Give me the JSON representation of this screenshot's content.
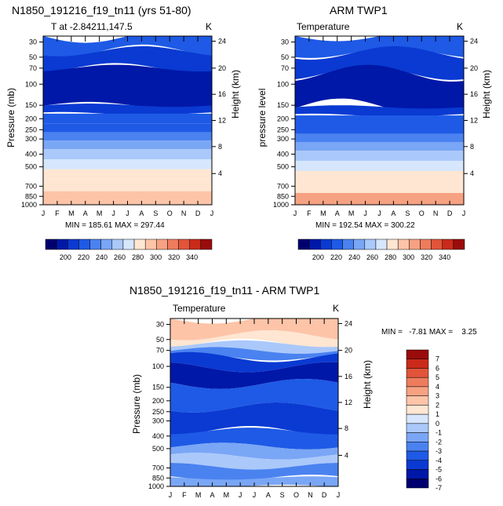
{
  "months": [
    "J",
    "F",
    "M",
    "A",
    "M",
    "J",
    "J",
    "A",
    "S",
    "O",
    "N",
    "D",
    "J"
  ],
  "palette_abs": [
    "#00006e",
    "#0018a8",
    "#0a3ad2",
    "#1e5ae6",
    "#4a82f0",
    "#7aa6f6",
    "#aac8fa",
    "#d6e6fd",
    "#ffe6d2",
    "#fdc4a8",
    "#f6a282",
    "#ee7c5c",
    "#e2543a",
    "#ca2a1a",
    "#9a0c0c"
  ],
  "palette_diff": [
    "#00006e",
    "#0018a8",
    "#0a3ad2",
    "#1e5ae6",
    "#4a82f0",
    "#7aa6f6",
    "#aac8fa",
    "#d6e6fd",
    "#ffe6d2",
    "#fdc4a8",
    "#f6a282",
    "#ee7c5c",
    "#e2543a",
    "#ca2a1a",
    "#9a0c0c"
  ],
  "chart_data": [
    {
      "type": "heatmap",
      "title": "N1850_191216_f19_tn11 (yrs 51-80)",
      "subtitle": "T at -2.84211,147.5",
      "units": "K",
      "xlabel": "",
      "ylabel": "Pressure (mb)",
      "y2label": "Height (km)",
      "x_ticks": [
        "J",
        "F",
        "M",
        "A",
        "M",
        "J",
        "J",
        "A",
        "S",
        "O",
        "N",
        "D",
        "J"
      ],
      "y_ticks": [
        "30",
        "50",
        "70",
        "100",
        "150",
        "200",
        "250",
        "300",
        "400",
        "500",
        "700",
        "850",
        "1000"
      ],
      "y2_ticks": [
        "24",
        "20",
        "16",
        "12",
        "8",
        "4"
      ],
      "stats": "MIN = 185.61 MAX = 297.44",
      "colorbar_labels": [
        "200",
        "220",
        "240",
        "260",
        "280",
        "300",
        "320",
        "340"
      ],
      "bands_from_top": [
        {
          "level": 220,
          "thickness": 0.09,
          "variation": 0.04
        },
        {
          "level": 200,
          "thickness": 0.1,
          "variation": 0.03
        },
        {
          "level": 190,
          "thickness": 0.22,
          "variation": 0.02
        },
        {
          "level": 200,
          "thickness": 0.05,
          "variation": 0.01
        },
        {
          "level": 210,
          "thickness": 0.06,
          "variation": 0.0
        },
        {
          "level": 220,
          "thickness": 0.05,
          "variation": 0.0
        },
        {
          "level": 230,
          "thickness": 0.05,
          "variation": 0.0
        },
        {
          "level": 240,
          "thickness": 0.05,
          "variation": 0.0
        },
        {
          "level": 250,
          "thickness": 0.06,
          "variation": 0.0
        },
        {
          "level": 260,
          "thickness": 0.06,
          "variation": 0.0
        },
        {
          "level": 270,
          "thickness": 0.06,
          "variation": 0.0
        },
        {
          "level": 280,
          "thickness": 0.07,
          "variation": 0.0
        },
        {
          "level": 290,
          "thickness": 0.08,
          "variation": 0.0
        }
      ]
    },
    {
      "type": "heatmap",
      "title": "ARM TWP1",
      "subtitle": "Temperature",
      "units": "K",
      "xlabel": "",
      "ylabel": "pressure level",
      "y2label": "Height (km)",
      "x_ticks": [
        "J",
        "F",
        "M",
        "A",
        "M",
        "J",
        "J",
        "A",
        "S",
        "O",
        "N",
        "D",
        "J"
      ],
      "y_ticks": [
        "30",
        "50",
        "70",
        "100",
        "150",
        "200",
        "250",
        "300",
        "400",
        "500",
        "700",
        "850",
        "1000"
      ],
      "y2_ticks": [
        "24",
        "20",
        "16",
        "12",
        "8",
        "4"
      ],
      "stats": "MIN = 192.54 MAX = 300.22",
      "colorbar_labels": [
        "200",
        "220",
        "240",
        "260",
        "280",
        "300",
        "320",
        "340"
      ],
      "bands_from_top": [
        {
          "level": 220,
          "thickness": 0.1,
          "variation": 0.03
        },
        {
          "level": 200,
          "thickness": 0.12,
          "variation": 0.04
        },
        {
          "level": 190,
          "thickness": 0.2,
          "variation": 0.05
        },
        {
          "level": 200,
          "thickness": 0.05,
          "variation": 0.01
        },
        {
          "level": 210,
          "thickness": 0.06,
          "variation": 0.0
        },
        {
          "level": 220,
          "thickness": 0.05,
          "variation": 0.0
        },
        {
          "level": 230,
          "thickness": 0.05,
          "variation": 0.0
        },
        {
          "level": 240,
          "thickness": 0.05,
          "variation": 0.0
        },
        {
          "level": 250,
          "thickness": 0.06,
          "variation": 0.0
        },
        {
          "level": 260,
          "thickness": 0.06,
          "variation": 0.0
        },
        {
          "level": 270,
          "thickness": 0.06,
          "variation": 0.0
        },
        {
          "level": 280,
          "thickness": 0.07,
          "variation": 0.0
        },
        {
          "level": 300,
          "thickness": 0.07,
          "variation": 0.0
        }
      ]
    },
    {
      "type": "heatmap",
      "title": "N1850_191216_f19_tn11 - ARM TWP1",
      "subtitle": "Temperature",
      "units": "K",
      "xlabel": "",
      "ylabel": "Pressure (mb)",
      "y2label": "Height (km)",
      "x_ticks": [
        "J",
        "F",
        "M",
        "A",
        "M",
        "J",
        "J",
        "A",
        "S",
        "O",
        "N",
        "D",
        "J"
      ],
      "y_ticks": [
        "30",
        "50",
        "70",
        "100",
        "150",
        "200",
        "250",
        "300",
        "400",
        "500",
        "700",
        "850",
        "1000"
      ],
      "y2_ticks": [
        "24",
        "20",
        "16",
        "12",
        "8",
        "4"
      ],
      "stats": "MIN =   -7.81 MAX =    3.25",
      "colorbar_labels": [
        "7",
        "6",
        "5",
        "4",
        "3",
        "2",
        "1",
        "0",
        "-1",
        "-2",
        "-3",
        "-4",
        "-5",
        "-6",
        "-7"
      ],
      "bands_from_top": [
        {
          "level": 2,
          "thickness": 0.1,
          "variation": 0.03
        },
        {
          "level": 1,
          "thickness": 0.05,
          "variation": 0.03
        },
        {
          "level": -1,
          "thickness": 0.04,
          "variation": 0.02
        },
        {
          "level": -3,
          "thickness": 0.04,
          "variation": 0.02
        },
        {
          "level": -5,
          "thickness": 0.06,
          "variation": 0.03
        },
        {
          "level": -6,
          "thickness": 0.1,
          "variation": 0.03
        },
        {
          "level": -4,
          "thickness": 0.14,
          "variation": 0.03
        },
        {
          "level": -5,
          "thickness": 0.14,
          "variation": 0.03
        },
        {
          "level": -4,
          "thickness": 0.09,
          "variation": 0.02
        },
        {
          "level": -2,
          "thickness": 0.06,
          "variation": 0.02
        },
        {
          "level": -1,
          "thickness": 0.06,
          "variation": 0.02
        },
        {
          "level": -3,
          "thickness": 0.07,
          "variation": 0.02
        },
        {
          "level": -2,
          "thickness": 0.05,
          "variation": 0.01
        }
      ]
    }
  ]
}
